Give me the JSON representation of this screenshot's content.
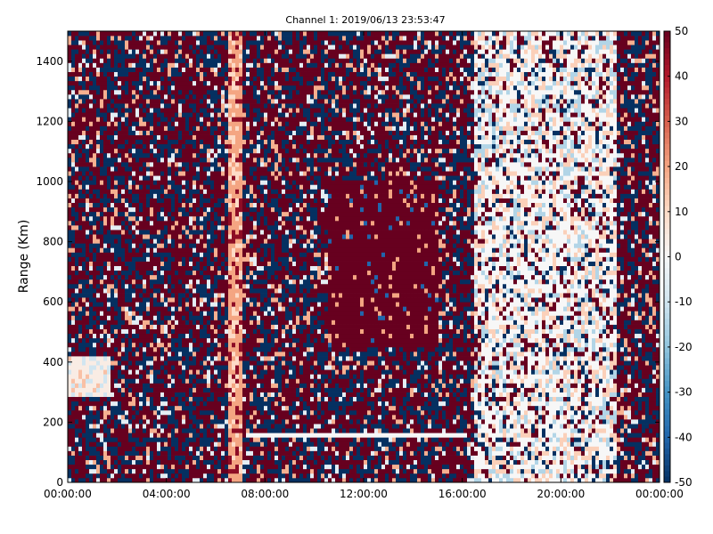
{
  "chart_data": {
    "type": "heatmap",
    "title": "Channel 1: 2019/06/13 23:53:47",
    "xlabel": "",
    "ylabel": "Range (Km)",
    "xlim": [
      0,
      24
    ],
    "ylim": [
      0,
      1500
    ],
    "x_ticks": [
      "00:00:00",
      "04:00:00",
      "08:00:00",
      "12:00:00",
      "16:00:00",
      "20:00:00",
      "00:00:00"
    ],
    "x_tick_hours": [
      0,
      4,
      8,
      12,
      16,
      20,
      24
    ],
    "y_ticks": [
      0,
      200,
      400,
      600,
      800,
      1000,
      1200,
      1400
    ],
    "colorbar": {
      "min": -50,
      "max": 50,
      "ticks": [
        50,
        40,
        30,
        20,
        10,
        0,
        -10,
        -20,
        -30,
        -40,
        -50
      ],
      "colormap": "RdBu_r",
      "colors": [
        "#053061",
        "#2166ac",
        "#4393c3",
        "#92c5de",
        "#d1e5f0",
        "#f7f7f7",
        "#fddbc7",
        "#f4a582",
        "#d6604d",
        "#b2182b",
        "#67001f"
      ]
    },
    "features": [
      {
        "name": "warm band",
        "time_start_h": 6.5,
        "time_end_h": 7.1,
        "range_start_km": 0,
        "range_end_km": 1500,
        "typical_value": 20
      },
      {
        "name": "strong positive patch",
        "time_start_h": 10.5,
        "time_end_h": 15.0,
        "range_start_km": 450,
        "range_end_km": 1000,
        "typical_value": 50
      },
      {
        "name": "near-zero region",
        "time_start_h": 16.5,
        "time_end_h": 22.3,
        "range_start_km": 0,
        "range_end_km": 1500,
        "typical_value": 0
      },
      {
        "name": "light patch",
        "time_start_h": 0.0,
        "time_end_h": 1.8,
        "range_start_km": 280,
        "range_end_km": 420,
        "typical_value": 5
      },
      {
        "name": "thin white line",
        "time_start_h": 7.2,
        "time_end_h": 16.2,
        "range_start_km": 155,
        "range_end_km": 165,
        "typical_value": 0
      }
    ]
  }
}
